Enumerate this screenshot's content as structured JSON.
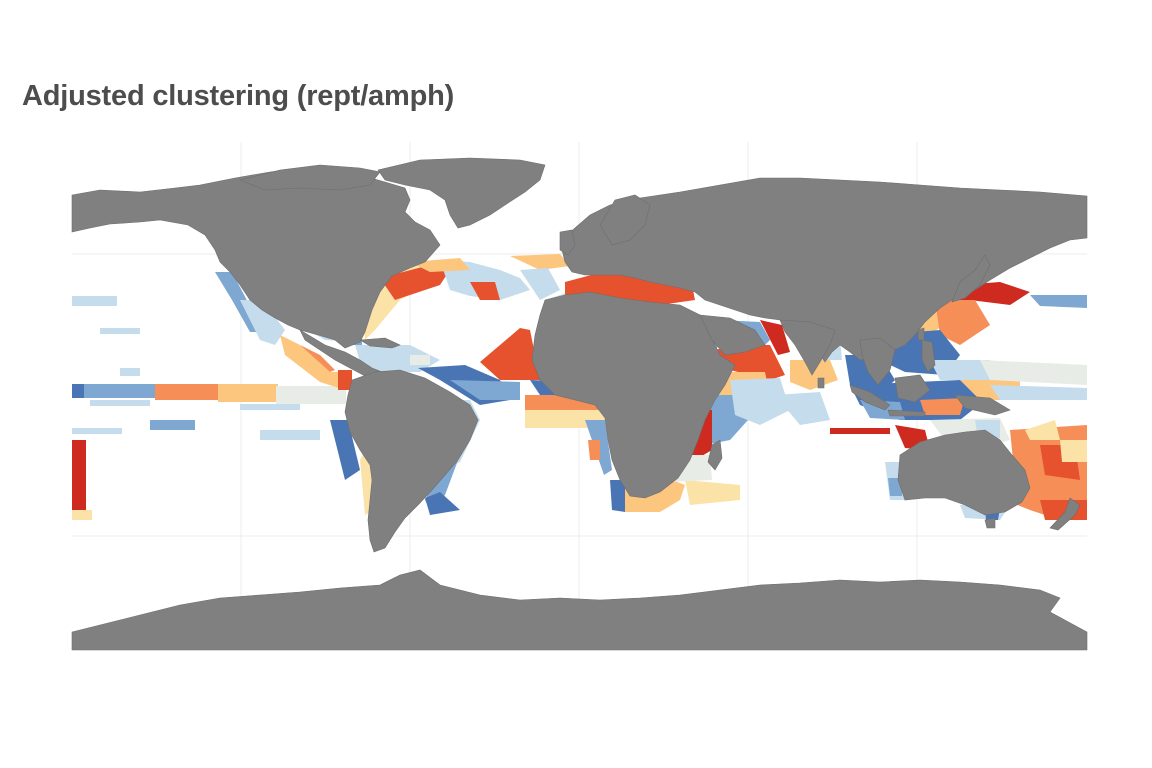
{
  "figure": {
    "title": "Adjusted clustering (rept/amph)"
  },
  "colors": {
    "background": "#ffffff",
    "land": "#808080",
    "land_border": "#6e6e6e",
    "grid": "#ebebeb",
    "palette": [
      "#4a75b5",
      "#7ea8d2",
      "#c4dcec",
      "#e8ece6",
      "#fbe3a7",
      "#fdc67e",
      "#f68e57",
      "#e6512e",
      "#cf2a1f"
    ]
  }
}
